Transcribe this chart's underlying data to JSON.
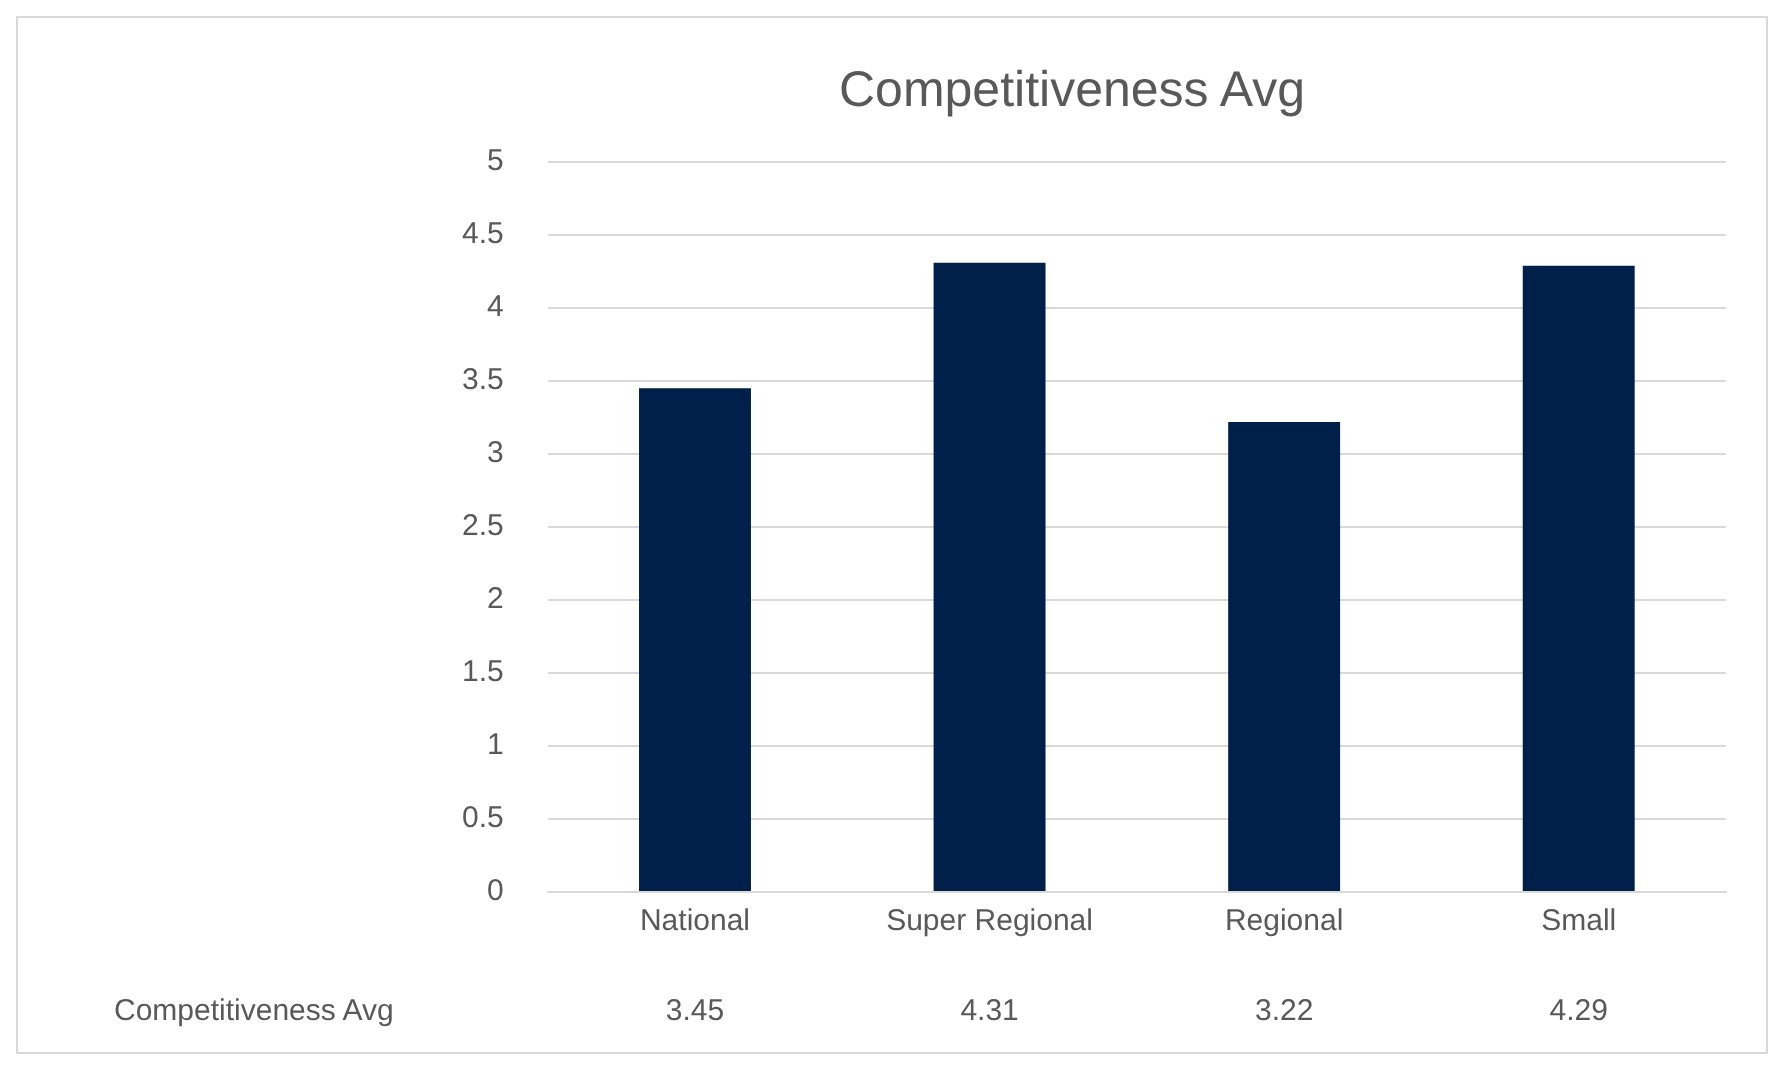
{
  "chart_data": {
    "type": "bar",
    "title": "Competitiveness Avg",
    "categories": [
      "National",
      "Super Regional",
      "Regional",
      "Small"
    ],
    "series": [
      {
        "name": "Competitiveness Avg",
        "color": "#00204a",
        "values": [
          3.45,
          4.31,
          3.22,
          4.29
        ]
      }
    ],
    "ylim": [
      0,
      5
    ],
    "yticks": [
      0,
      0.5,
      1,
      1.5,
      2,
      2.5,
      3,
      3.5,
      4,
      4.5,
      5
    ],
    "grid": "y",
    "legend": false,
    "data_labels": true
  }
}
